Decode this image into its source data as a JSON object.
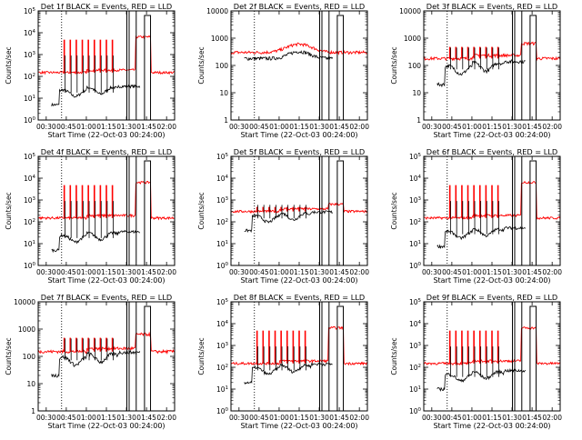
{
  "figure": {
    "xlabel": "Start Time (22-Oct-03 00:24:00)",
    "ylabel": "Counts/sec",
    "x_tick_labels": [
      "00:30",
      "00:45",
      "01:00",
      "01:15",
      "01:30",
      "01:45",
      "02:00"
    ],
    "colors": {
      "events": "#000000",
      "lld": "#ff0000",
      "axes": "#000000",
      "background": "#ffffff"
    }
  },
  "chart_data": [
    {
      "type": "line",
      "title": "Det 1f BLACK = Events, RED = LLD",
      "scale": "log",
      "ylim": [
        1,
        100000
      ],
      "ytick_values": [
        1,
        10,
        100,
        1000,
        10000,
        100000
      ],
      "ytick_labels": [
        "10^0",
        "10^1",
        "10^2",
        "10^3",
        "10^4",
        "10^5"
      ],
      "ytick_style": "exp",
      "xlim_minutes": [
        24,
        126
      ],
      "xlabel": "Start Time (22-Oct-03 00:24:00)",
      "ylabel": "Counts/sec",
      "series": [
        {
          "name": "Events",
          "color": "#000000",
          "baseline": 10,
          "peak": 3000
        },
        {
          "name": "LLD",
          "color": "#ff0000",
          "baseline": 150,
          "peak": 80000
        }
      ]
    },
    {
      "type": "line",
      "title": "Det 2f BLACK = Events, RED = LLD",
      "scale": "log",
      "ylim": [
        1,
        10000
      ],
      "ytick_values": [
        1,
        10,
        100,
        1000,
        10000
      ],
      "ytick_labels": [
        "1",
        "10",
        "100",
        "1000",
        "10000"
      ],
      "ytick_style": "plain",
      "xlim_minutes": [
        24,
        126
      ],
      "xlabel": "Start Time (22-Oct-03 00:24:00)",
      "ylabel": "Counts/sec",
      "series": [
        {
          "name": "Events",
          "color": "#000000",
          "baseline": 180,
          "peak": 400
        },
        {
          "name": "LLD",
          "color": "#ff0000",
          "baseline": 300,
          "peak": 700
        }
      ]
    },
    {
      "type": "line",
      "title": "Det 3f BLACK = Events, RED = LLD",
      "scale": "log",
      "ylim": [
        1,
        10000
      ],
      "ytick_values": [
        1,
        10,
        100,
        1000,
        10000
      ],
      "ytick_labels": [
        "1",
        "10",
        "100",
        "1000",
        "10000"
      ],
      "ytick_style": "plain",
      "xlim_minutes": [
        24,
        126
      ],
      "xlabel": "Start Time (22-Oct-03 00:24:00)",
      "ylabel": "Counts/sec",
      "series": [
        {
          "name": "Events",
          "color": "#000000",
          "baseline": 40,
          "peak": 1500
        },
        {
          "name": "LLD",
          "color": "#ff0000",
          "baseline": 180,
          "peak": 8000
        }
      ]
    },
    {
      "type": "line",
      "title": "Det 4f BLACK = Events, RED = LLD",
      "scale": "log",
      "ylim": [
        1,
        100000
      ],
      "ytick_values": [
        1,
        10,
        100,
        1000,
        10000,
        100000
      ],
      "ytick_labels": [
        "10^0",
        "10^1",
        "10^2",
        "10^3",
        "10^4",
        "10^5"
      ],
      "ytick_style": "exp",
      "xlim_minutes": [
        24,
        126
      ],
      "xlabel": "Start Time (22-Oct-03 00:24:00)",
      "ylabel": "Counts/sec",
      "series": [
        {
          "name": "Events",
          "color": "#000000",
          "baseline": 10,
          "peak": 3000
        },
        {
          "name": "LLD",
          "color": "#ff0000",
          "baseline": 150,
          "peak": 80000
        }
      ]
    },
    {
      "type": "line",
      "title": "Det 5f BLACK = Events, RED = LLD",
      "scale": "log",
      "ylim": [
        1,
        100000
      ],
      "ytick_values": [
        1,
        10,
        100,
        1000,
        10000,
        100000
      ],
      "ytick_labels": [
        "10^0",
        "10^1",
        "10^2",
        "10^3",
        "10^4",
        "10^5"
      ],
      "ytick_style": "exp",
      "xlim_minutes": [
        24,
        126
      ],
      "xlabel": "Start Time (22-Oct-03 00:24:00)",
      "ylabel": "Counts/sec",
      "series": [
        {
          "name": "Events",
          "color": "#000000",
          "baseline": 80,
          "peak": 2000
        },
        {
          "name": "LLD",
          "color": "#ff0000",
          "baseline": 300,
          "peak": 8000
        }
      ]
    },
    {
      "type": "line",
      "title": "Det 6f BLACK = Events, RED = LLD",
      "scale": "log",
      "ylim": [
        1,
        100000
      ],
      "ytick_values": [
        1,
        10,
        100,
        1000,
        10000,
        100000
      ],
      "ytick_labels": [
        "10^0",
        "10^1",
        "10^2",
        "10^3",
        "10^4",
        "10^5"
      ],
      "ytick_style": "exp",
      "xlim_minutes": [
        24,
        126
      ],
      "xlabel": "Start Time (22-Oct-03 00:24:00)",
      "ylabel": "Counts/sec",
      "series": [
        {
          "name": "Events",
          "color": "#000000",
          "baseline": 15,
          "peak": 3000
        },
        {
          "name": "LLD",
          "color": "#ff0000",
          "baseline": 150,
          "peak": 80000
        }
      ]
    },
    {
      "type": "line",
      "title": "Det 7f BLACK = Events, RED = LLD",
      "scale": "log",
      "ylim": [
        1,
        10000
      ],
      "ytick_values": [
        1,
        10,
        100,
        1000,
        10000
      ],
      "ytick_labels": [
        "1",
        "10",
        "100",
        "1000",
        "10000"
      ],
      "ytick_style": "plain",
      "xlim_minutes": [
        24,
        126
      ],
      "xlabel": "Start Time (22-Oct-03 00:24:00)",
      "ylabel": "Counts/sec",
      "series": [
        {
          "name": "Events",
          "color": "#000000",
          "baseline": 40,
          "peak": 1500
        },
        {
          "name": "LLD",
          "color": "#ff0000",
          "baseline": 150,
          "peak": 8000
        }
      ]
    },
    {
      "type": "line",
      "title": "Det 8f BLACK = Events, RED = LLD",
      "scale": "log",
      "ylim": [
        1,
        100000
      ],
      "ytick_values": [
        1,
        10,
        100,
        1000,
        10000,
        100000
      ],
      "ytick_labels": [
        "10^0",
        "10^1",
        "10^2",
        "10^3",
        "10^4",
        "10^5"
      ],
      "ytick_style": "exp",
      "xlim_minutes": [
        24,
        126
      ],
      "xlabel": "Start Time (22-Oct-03 00:24:00)",
      "ylabel": "Counts/sec",
      "series": [
        {
          "name": "Events",
          "color": "#000000",
          "baseline": 40,
          "peak": 3000
        },
        {
          "name": "LLD",
          "color": "#ff0000",
          "baseline": 150,
          "peak": 80000
        }
      ]
    },
    {
      "type": "line",
      "title": "Det 9f BLACK = Events, RED = LLD",
      "scale": "log",
      "ylim": [
        1,
        100000
      ],
      "ytick_values": [
        1,
        10,
        100,
        1000,
        10000,
        100000
      ],
      "ytick_labels": [
        "10^0",
        "10^1",
        "10^2",
        "10^3",
        "10^4",
        "10^5"
      ],
      "ytick_style": "exp",
      "xlim_minutes": [
        24,
        126
      ],
      "xlabel": "Start Time (22-Oct-03 00:24:00)",
      "ylabel": "Counts/sec",
      "series": [
        {
          "name": "Events",
          "color": "#000000",
          "baseline": 20,
          "peak": 3000
        },
        {
          "name": "LLD",
          "color": "#ff0000",
          "baseline": 150,
          "peak": 80000
        }
      ]
    }
  ]
}
